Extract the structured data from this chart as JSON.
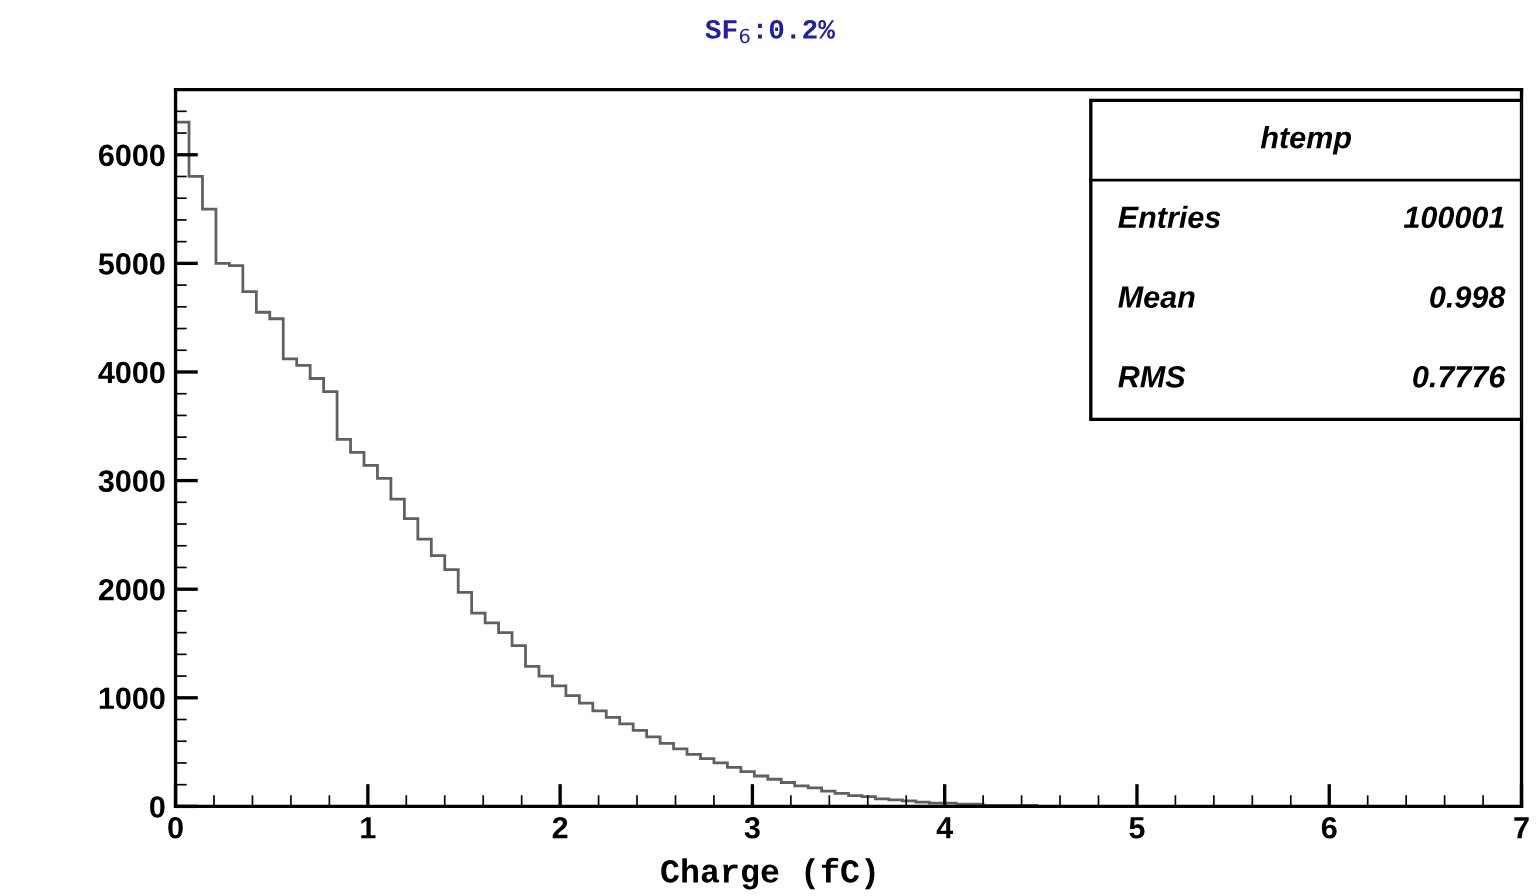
{
  "chart_data": {
    "type": "histogram",
    "title": "SF$_{6}$:0.2%",
    "xlabel": "Charge (fC)",
    "bins": [
      0,
      0.07,
      0.14,
      0.21,
      0.28,
      0.35,
      0.42,
      0.49,
      0.56,
      0.63,
      0.7,
      0.77,
      0.84,
      0.91,
      0.98,
      1.05,
      1.12,
      1.19,
      1.26,
      1.33,
      1.4,
      1.47,
      1.54,
      1.61,
      1.68,
      1.75,
      1.82,
      1.89,
      1.96,
      2.03,
      2.1,
      2.17,
      2.24,
      2.31,
      2.38,
      2.45,
      2.52,
      2.59,
      2.66,
      2.73,
      2.8,
      2.87,
      2.94,
      3.01,
      3.08,
      3.15,
      3.22,
      3.29,
      3.36,
      3.43,
      3.5,
      3.57,
      3.64,
      3.71,
      3.78,
      3.85,
      3.92,
      3.99,
      4.06,
      4.13,
      4.2,
      4.27,
      4.34,
      4.41,
      4.48,
      4.55,
      4.62,
      4.69,
      4.76,
      4.83,
      4.9,
      4.97,
      5.04,
      5.11,
      5.18,
      5.25,
      5.32,
      5.39,
      5.46,
      5.53,
      5.6,
      5.67,
      5.74,
      5.81,
      5.88,
      5.95,
      6.02,
      6.09,
      6.16,
      6.23,
      6.3,
      6.37,
      6.44,
      6.51,
      6.58,
      6.65,
      6.72,
      6.79,
      6.86,
      6.93,
      7
    ],
    "values": [
      6300,
      5800,
      5500,
      5000,
      4980,
      4740,
      4550,
      4490,
      4120,
      4060,
      3940,
      3820,
      3380,
      3260,
      3140,
      3020,
      2830,
      2650,
      2460,
      2310,
      2180,
      1970,
      1780,
      1690,
      1600,
      1480,
      1290,
      1200,
      1110,
      1020,
      950,
      880,
      820,
      760,
      700,
      640,
      580,
      530,
      480,
      440,
      400,
      360,
      320,
      280,
      250,
      220,
      190,
      170,
      140,
      120,
      100,
      90,
      70,
      60,
      50,
      40,
      30,
      30,
      20,
      20,
      10,
      10,
      10,
      10,
      0,
      0,
      0,
      0,
      0,
      0,
      0,
      0,
      0,
      0,
      0,
      0,
      0,
      0,
      0,
      0,
      0,
      0,
      0,
      0,
      0,
      0,
      0,
      0,
      0,
      0,
      0,
      0,
      0,
      0,
      0,
      0,
      0,
      0,
      0,
      0
    ],
    "color": "#606060",
    "xlim": [
      0,
      7
    ],
    "ylim": [
      0,
      6600
    ],
    "xticks": [
      0,
      1,
      2,
      3,
      4,
      5,
      6,
      7
    ],
    "yticks": [
      0,
      1000,
      2000,
      3000,
      4000,
      5000,
      6000
    ],
    "annotations": [
      "htemp",
      "Entries",
      "100001",
      "Mean",
      "0.998",
      "RMS",
      "0.7776"
    ],
    "grid": false
  }
}
